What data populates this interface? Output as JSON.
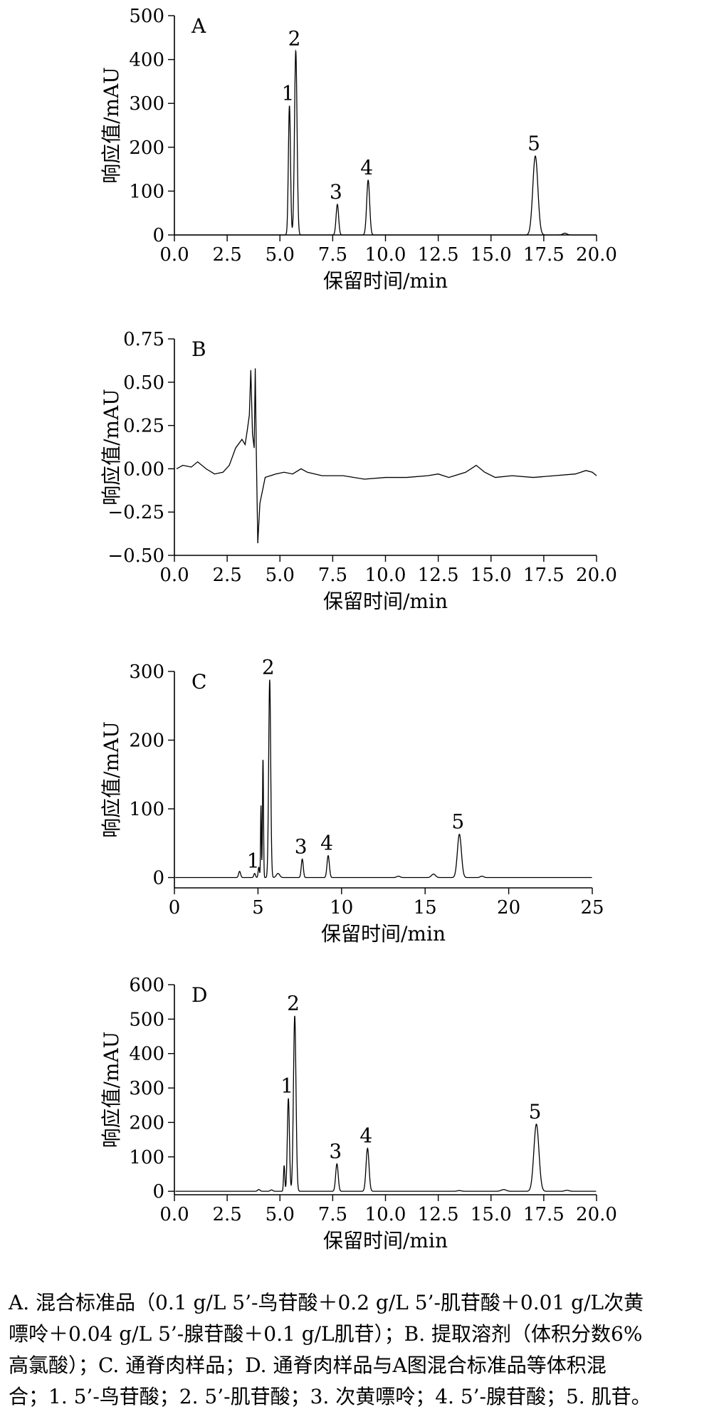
{
  "chart_data": [
    {
      "type": "line",
      "panel_letter": "A",
      "xlabel": "保留时间/min",
      "ylabel": "响应值/mAU",
      "xlim": [
        0,
        20
      ],
      "ylim": [
        0,
        500
      ],
      "x_ticks": [
        "0.0",
        "2.5",
        "5.0",
        "7.5",
        "10.0",
        "12.5",
        "15.0",
        "17.5",
        "20.0"
      ],
      "x_tick_values": [
        0,
        2.5,
        5,
        7.5,
        10,
        12.5,
        15,
        17.5,
        20
      ],
      "y_ticks": [
        "0",
        "100",
        "200",
        "300",
        "400",
        "500"
      ],
      "y_tick_values": [
        0,
        100,
        200,
        300,
        400,
        500
      ],
      "baseline": 0,
      "peaks": [
        {
          "label": "1",
          "rt": 5.45,
          "height": 295,
          "width": 0.05
        },
        {
          "label": "2",
          "rt": 5.75,
          "height": 420,
          "width": 0.06
        },
        {
          "label": "3",
          "rt": 7.72,
          "height": 70,
          "width": 0.06
        },
        {
          "label": "4",
          "rt": 9.18,
          "height": 125,
          "width": 0.07
        },
        {
          "label": "5",
          "rt": 17.1,
          "height": 180,
          "width": 0.12
        },
        {
          "label": "",
          "rt": 18.5,
          "height": 4,
          "width": 0.1
        }
      ]
    },
    {
      "type": "line",
      "panel_letter": "B",
      "xlabel": "保留时间/min",
      "ylabel": "响应值/mAU",
      "xlim": [
        0,
        20
      ],
      "ylim": [
        -0.5,
        0.75
      ],
      "x_ticks": [
        "0.0",
        "2.5",
        "5.0",
        "7.5",
        "10.0",
        "12.5",
        "15.0",
        "17.5",
        "20.0"
      ],
      "x_tick_values": [
        0,
        2.5,
        5,
        7.5,
        10,
        12.5,
        15,
        17.5,
        20
      ],
      "y_ticks": [
        "−0.50",
        "−0.25",
        "0.00",
        "0.25",
        "0.50",
        "0.75"
      ],
      "y_tick_values": [
        -0.5,
        -0.25,
        0,
        0.25,
        0.5,
        0.75
      ],
      "baseline": 0,
      "trace": [
        [
          0.1,
          0.0
        ],
        [
          0.4,
          0.02
        ],
        [
          0.8,
          0.01
        ],
        [
          1.1,
          0.04
        ],
        [
          1.5,
          0.0
        ],
        [
          1.9,
          -0.03
        ],
        [
          2.3,
          -0.02
        ],
        [
          2.6,
          0.02
        ],
        [
          2.9,
          0.12
        ],
        [
          3.2,
          0.17
        ],
        [
          3.35,
          0.14
        ],
        [
          3.45,
          0.22
        ],
        [
          3.55,
          0.31
        ],
        [
          3.62,
          0.57
        ],
        [
          3.7,
          0.2
        ],
        [
          3.78,
          0.12
        ],
        [
          3.83,
          0.58
        ],
        [
          3.88,
          0.1
        ],
        [
          3.95,
          -0.43
        ],
        [
          4.05,
          -0.2
        ],
        [
          4.3,
          -0.05
        ],
        [
          4.8,
          -0.03
        ],
        [
          5.2,
          -0.02
        ],
        [
          5.6,
          -0.03
        ],
        [
          6.0,
          0.0
        ],
        [
          6.3,
          -0.02
        ],
        [
          7.0,
          -0.04
        ],
        [
          8.0,
          -0.04
        ],
        [
          9.0,
          -0.06
        ],
        [
          10.0,
          -0.05
        ],
        [
          11.0,
          -0.05
        ],
        [
          12.0,
          -0.04
        ],
        [
          12.5,
          -0.03
        ],
        [
          13.0,
          -0.05
        ],
        [
          13.8,
          -0.02
        ],
        [
          14.3,
          0.02
        ],
        [
          14.7,
          -0.02
        ],
        [
          15.2,
          -0.05
        ],
        [
          16.0,
          -0.04
        ],
        [
          17.0,
          -0.05
        ],
        [
          18.0,
          -0.04
        ],
        [
          19.0,
          -0.03
        ],
        [
          19.5,
          -0.01
        ],
        [
          19.8,
          -0.02
        ],
        [
          20.0,
          -0.04
        ]
      ]
    },
    {
      "type": "line",
      "panel_letter": "C",
      "xlabel": "保留时间/min",
      "ylabel": "响应值/mAU",
      "xlim": [
        0,
        25
      ],
      "ylim": [
        -15,
        300
      ],
      "x_ticks": [
        "0",
        "5",
        "10",
        "15",
        "20",
        "25"
      ],
      "x_tick_values": [
        0,
        5,
        10,
        15,
        20,
        25
      ],
      "y_ticks": [
        "0",
        "100",
        "200",
        "300"
      ],
      "y_tick_values": [
        0,
        100,
        200,
        300
      ],
      "baseline": 0,
      "peaks": [
        {
          "label": "",
          "rt": 3.9,
          "height": 9,
          "width": 0.06
        },
        {
          "label": "1",
          "rt": 4.8,
          "height": 6,
          "width": 0.05
        },
        {
          "label": "",
          "rt": 5.05,
          "height": 15,
          "width": 0.04
        },
        {
          "label": "",
          "rt": 5.18,
          "height": 105,
          "width": 0.025
        },
        {
          "label": "",
          "rt": 5.3,
          "height": 173,
          "width": 0.03
        },
        {
          "label": "2",
          "rt": 5.7,
          "height": 288,
          "width": 0.06
        },
        {
          "label": "",
          "rt": 6.2,
          "height": 6,
          "width": 0.1
        },
        {
          "label": "3",
          "rt": 7.65,
          "height": 27,
          "width": 0.06
        },
        {
          "label": "4",
          "rt": 9.2,
          "height": 32,
          "width": 0.07
        },
        {
          "label": "",
          "rt": 13.4,
          "height": 2,
          "width": 0.1
        },
        {
          "label": "",
          "rt": 15.5,
          "height": 5,
          "width": 0.12
        },
        {
          "label": "5",
          "rt": 17.05,
          "height": 63,
          "width": 0.12
        },
        {
          "label": "",
          "rt": 18.4,
          "height": 2,
          "width": 0.1
        }
      ]
    },
    {
      "type": "line",
      "panel_letter": "D",
      "xlabel": "保留时间/min",
      "ylabel": "响应值/mAU",
      "xlim": [
        0,
        20
      ],
      "ylim": [
        -10,
        600
      ],
      "x_ticks": [
        "0.0",
        "2.5",
        "5.0",
        "7.5",
        "10.0",
        "12.5",
        "15.0",
        "17.5",
        "20.0"
      ],
      "x_tick_values": [
        0,
        2.5,
        5,
        7.5,
        10,
        12.5,
        15,
        17.5,
        20
      ],
      "y_ticks": [
        "0",
        "100",
        "200",
        "300",
        "400",
        "500",
        "600"
      ],
      "y_tick_values": [
        0,
        100,
        200,
        300,
        400,
        500,
        600
      ],
      "baseline": 0,
      "peaks": [
        {
          "label": "",
          "rt": 4.0,
          "height": 5,
          "width": 0.06
        },
        {
          "label": "",
          "rt": 4.6,
          "height": 4,
          "width": 0.06
        },
        {
          "label": "",
          "rt": 5.2,
          "height": 75,
          "width": 0.03
        },
        {
          "label": "1",
          "rt": 5.4,
          "height": 270,
          "width": 0.05
        },
        {
          "label": "2",
          "rt": 5.7,
          "height": 510,
          "width": 0.06
        },
        {
          "label": "3",
          "rt": 7.7,
          "height": 80,
          "width": 0.06
        },
        {
          "label": "4",
          "rt": 9.15,
          "height": 125,
          "width": 0.07
        },
        {
          "label": "",
          "rt": 13.5,
          "height": 2,
          "width": 0.1
        },
        {
          "label": "",
          "rt": 15.6,
          "height": 5,
          "width": 0.12
        },
        {
          "label": "5",
          "rt": 17.15,
          "height": 195,
          "width": 0.12
        },
        {
          "label": "",
          "rt": 18.6,
          "height": 3,
          "width": 0.1
        }
      ]
    }
  ],
  "caption": {
    "lines": [
      "A. 混合标准品（0.1 g/L 5’-鸟苷酸＋0.2 g/L 5’-肌苷酸＋0.01 g/L次黄",
      "嘌呤＋0.04 g/L 5’-腺苷酸＋0.1 g/L肌苷）；B. 提取溶剂（体积分数6%",
      "高氯酸）；C. 通脊肉样品；D. 通脊肉样品与A图混合标准品等体积混",
      "合；1. 5’-鸟苷酸；2. 5’-肌苷酸；3. 次黄嘌呤；4. 5’-腺苷酸；5. 肌苷。"
    ]
  }
}
